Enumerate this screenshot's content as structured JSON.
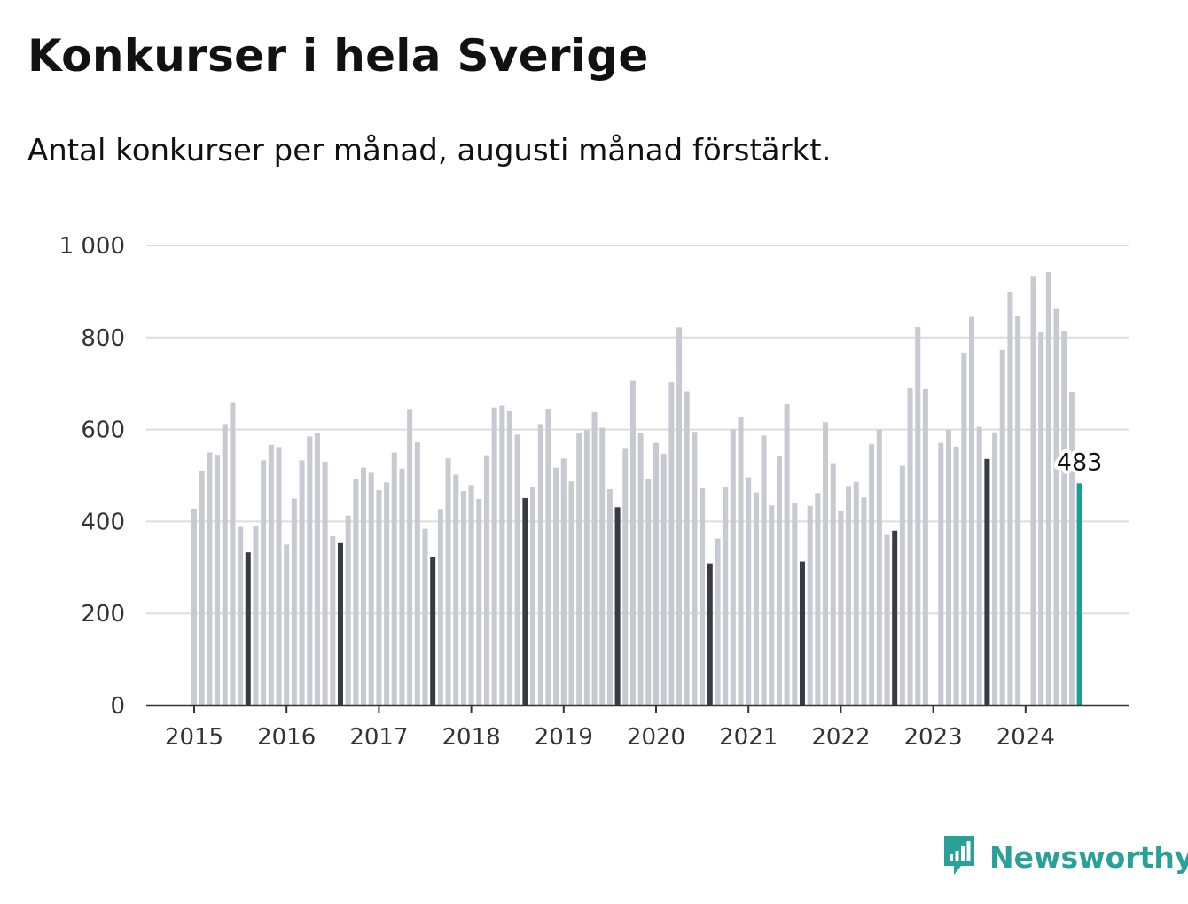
{
  "title": "Konkurser i hela Sverige",
  "subtitle": "Antal konkurser per månad, augusti månad förstärkt.",
  "brand": {
    "name": "Newsworthy",
    "icon": "bar-chart-speech-bubble-icon",
    "color": "#2aa198"
  },
  "colors": {
    "bar": "#c9c9d1",
    "highlight": "#3a3a44",
    "latest": "#1a9e93",
    "grid": "#dddddd",
    "axis": "#333333"
  },
  "chart_data": {
    "type": "bar",
    "title": "Konkurser i hela Sverige",
    "subtitle": "Antal konkurser per månad, augusti månad förstärkt.",
    "ylim": [
      0,
      1000
    ],
    "yticks": [
      0,
      200,
      400,
      600,
      800,
      1000
    ],
    "ytick_labels": [
      "0",
      "200",
      "400",
      "600",
      "800",
      "1 000"
    ],
    "xtick_labels": [
      "2015",
      "2016",
      "2017",
      "2018",
      "2019",
      "2020",
      "2021",
      "2022",
      "2023",
      "2024"
    ],
    "start_period": "2015-01",
    "grid": true,
    "highlight_month": "augusti",
    "latest_label": "483",
    "values": [
      428,
      510,
      550,
      545,
      612,
      658,
      388,
      333,
      390,
      533,
      567,
      562,
      350,
      450,
      533,
      585,
      593,
      530,
      368,
      353,
      413,
      493,
      517,
      506,
      468,
      485,
      550,
      515,
      643,
      572,
      384,
      323,
      427,
      537,
      502,
      466,
      479,
      449,
      544,
      648,
      652,
      640,
      589,
      451,
      474,
      612,
      645,
      517,
      537,
      487,
      593,
      599,
      638,
      604,
      470,
      431,
      558,
      706,
      592,
      493,
      571,
      547,
      703,
      822,
      683,
      595,
      472,
      309,
      363,
      476,
      601,
      628,
      496,
      463,
      587,
      435,
      542,
      655,
      441,
      313,
      434,
      462,
      616,
      527,
      422,
      477,
      486,
      452,
      568,
      600,
      371,
      380,
      521,
      690,
      823,
      688,
      0,
      571,
      599,
      563,
      767,
      845,
      606,
      536,
      594,
      773,
      899,
      846,
      0,
      934,
      811,
      942,
      862,
      813,
      682,
      483
    ]
  }
}
